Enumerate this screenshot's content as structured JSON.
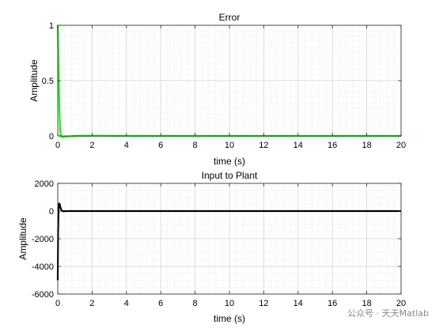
{
  "chart_data": [
    {
      "type": "line",
      "title": "Error",
      "xlabel": "time (s)",
      "ylabel": "Amplitude",
      "xlim": [
        0,
        20
      ],
      "ylim": [
        0,
        1
      ],
      "xticks": [
        0,
        2,
        4,
        6,
        8,
        10,
        12,
        14,
        16,
        18,
        20
      ],
      "yticks": [
        0,
        0.5,
        1
      ],
      "ytick_labels": [
        "0",
        "0.5",
        "1"
      ],
      "grid": "major and minor (dotted)",
      "series": [
        {
          "color": "#00ff00",
          "x": [
            0,
            0.05,
            0.1,
            0.15,
            0.2,
            0.3,
            0.5,
            1,
            2,
            4,
            6,
            10,
            20
          ],
          "y": [
            1,
            0.6,
            0.2,
            0.03,
            -0.005,
            -0.012,
            -0.006,
            0.0,
            0.002,
            0.0,
            0.0,
            0.0,
            0.0
          ]
        }
      ]
    },
    {
      "type": "line",
      "title": "Input to Plant",
      "xlabel": "time (s)",
      "ylabel": "Amplitude",
      "xlim": [
        0,
        20
      ],
      "ylim": [
        -6000,
        2000
      ],
      "xticks": [
        0,
        2,
        4,
        6,
        8,
        10,
        12,
        14,
        16,
        18,
        20
      ],
      "yticks": [
        -6000,
        -4000,
        -2000,
        0,
        2000
      ],
      "ytick_labels": [
        "-6000",
        "-4000",
        "-2000",
        "0",
        "2000"
      ],
      "grid": "major and minor (dotted)",
      "series": [
        {
          "color": "#000000",
          "x": [
            0,
            0.02,
            0.05,
            0.08,
            0.12,
            0.16,
            0.2,
            0.25,
            0.3,
            0.4,
            0.6,
            1,
            20
          ],
          "y": [
            -5000,
            -1500,
            200,
            550,
            480,
            250,
            100,
            20,
            -15,
            -5,
            0,
            0,
            0
          ]
        }
      ]
    }
  ],
  "watermark": "公众号 · 天天Matlab"
}
